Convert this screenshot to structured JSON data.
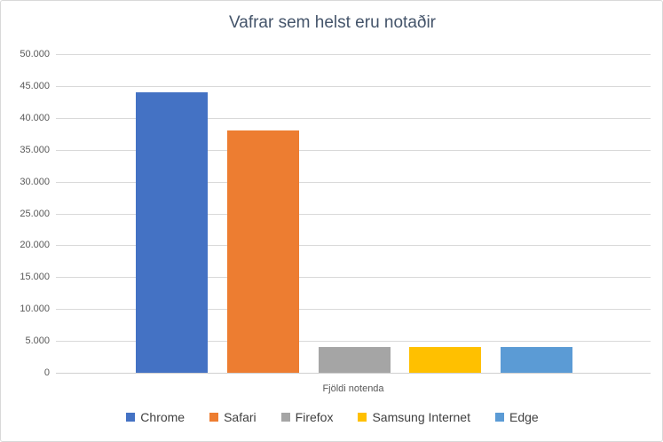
{
  "chart": {
    "title": "Vafrar sem helst eru notaðir",
    "x_axis_title": "Fjöldi notenda"
  },
  "chart_data": {
    "type": "bar",
    "title": "Vafrar sem helst eru notaðir",
    "categories": [
      "Chrome",
      "Safari",
      "Firefox",
      "Samsung Internet",
      "Edge"
    ],
    "values": [
      44000,
      38000,
      4000,
      4000,
      4000
    ],
    "colors": [
      "#4472C4",
      "#ED7D31",
      "#A5A5A5",
      "#FFC000",
      "#5B9BD5"
    ],
    "xlabel": "Fjöldi notenda",
    "ylabel": "",
    "ylim": [
      0,
      50000
    ],
    "ytick_step": 5000,
    "ytick_labels": [
      "0",
      "5.000",
      "10.000",
      "15.000",
      "20.000",
      "25.000",
      "30.000",
      "35.000",
      "40.000",
      "45.000",
      "50.000"
    ],
    "grid": true,
    "legend_position": "bottom",
    "gridline_color": "#D9D9D9",
    "title_color": "#44546A",
    "axis_text_color": "#595959",
    "legend_text_color": "#404040"
  }
}
